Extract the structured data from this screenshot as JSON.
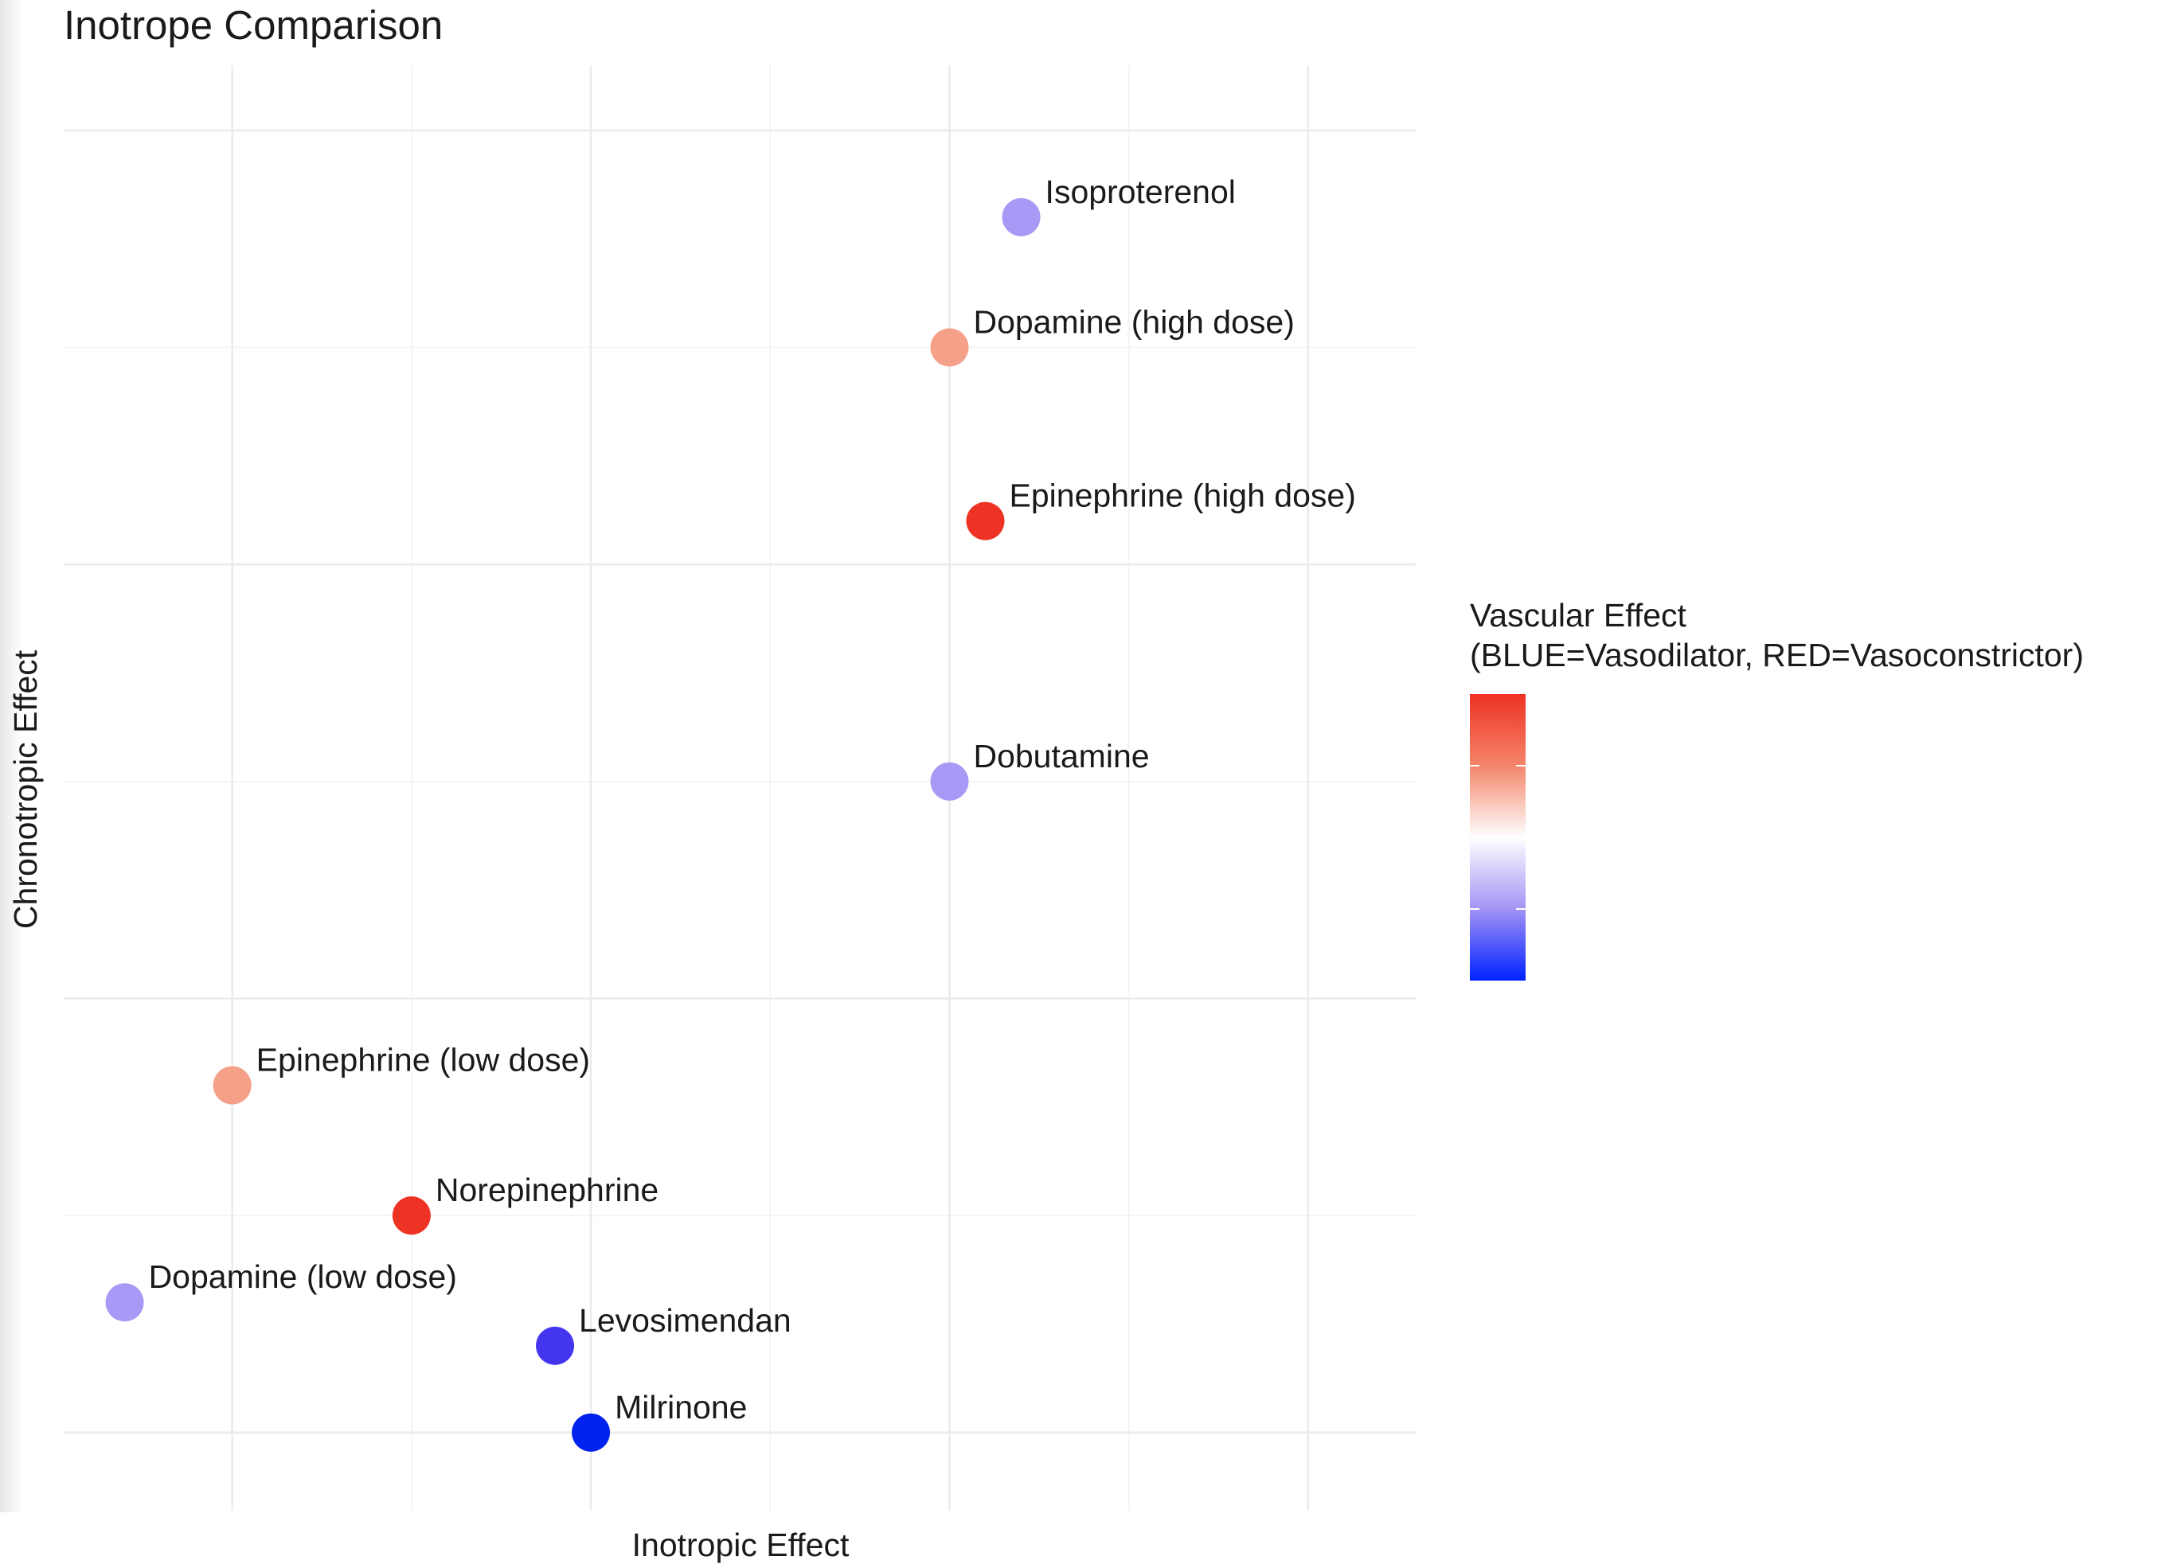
{
  "chart_data": {
    "type": "scatter",
    "title": "Inotrope Comparison",
    "xlabel": "Inotropic Effect",
    "ylabel": "Chronotropic Effect",
    "xlim": [
      -0.47,
      3.3
    ],
    "ylim": [
      -0.18,
      3.15
    ],
    "grid": true,
    "tick_labels_shown": false,
    "legend_position": "right",
    "color_scale": {
      "title_line1": "Vascular Effect",
      "title_line2": "(BLUE=Vasodilator, RED=Vasoconstrictor)",
      "low_color": "#0022ff",
      "mid_color": "#ffffff",
      "high_color": "#ee3224",
      "range": [
        -2,
        2
      ]
    },
    "points": [
      {
        "label": "Isoproterenol",
        "x": 2.2,
        "y": 2.8,
        "vascular": -1
      },
      {
        "label": "Dopamine (high dose)",
        "x": 2.0,
        "y": 2.5,
        "vascular": 1
      },
      {
        "label": "Epinephrine (high dose)",
        "x": 2.1,
        "y": 2.1,
        "vascular": 2
      },
      {
        "label": "Dobutamine",
        "x": 2.0,
        "y": 1.5,
        "vascular": -1
      },
      {
        "label": "Epinephrine (low dose)",
        "x": 0.0,
        "y": 0.8,
        "vascular": 1
      },
      {
        "label": "Norepinephrine",
        "x": 0.5,
        "y": 0.5,
        "vascular": 2
      },
      {
        "label": "Dopamine (low dose)",
        "x": -0.3,
        "y": 0.3,
        "vascular": -1
      },
      {
        "label": "Levosimendan",
        "x": 0.9,
        "y": 0.2,
        "vascular": -1.6
      },
      {
        "label": "Milrinone",
        "x": 1.0,
        "y": 0.0,
        "vascular": -2
      }
    ]
  }
}
